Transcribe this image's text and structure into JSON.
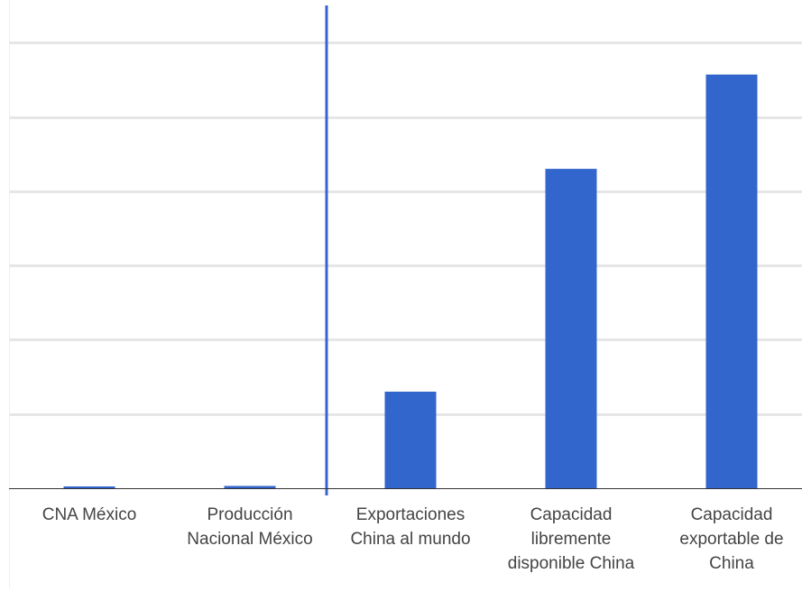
{
  "chart_data": {
    "type": "bar",
    "categories": [
      [
        "CNA México"
      ],
      [
        "Producción",
        "Nacional México"
      ],
      [
        "Exportaciones",
        "China al mundo"
      ],
      [
        "Capacidad",
        "libremente",
        "disponible China"
      ],
      [
        "Capacidad",
        "exportable de",
        "China"
      ]
    ],
    "values": [
      0.02,
      0.03,
      1.3,
      4.3,
      5.57
    ],
    "ylim": [
      0,
      6.5
    ],
    "grid": true,
    "gridlines": [
      0,
      1,
      2,
      3,
      4,
      5,
      6
    ],
    "reference_line_after_category": 1,
    "colors": {
      "bar": "#3366cc",
      "reference_line": "#3a63d1",
      "grid": "#e6e6e6",
      "axis": "#333333",
      "text": "#444444"
    }
  }
}
